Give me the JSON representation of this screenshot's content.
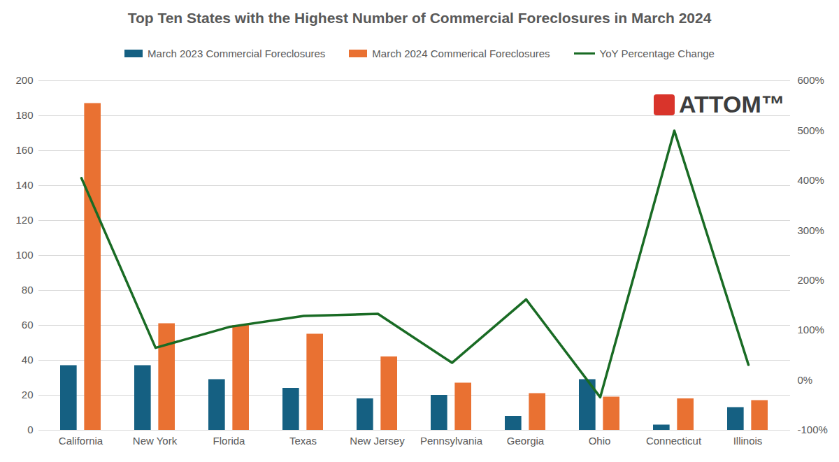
{
  "chart_data": {
    "type": "bar",
    "title": "Top Ten States with the Highest Number of Commercial Foreclosures in March 2024",
    "categories": [
      "California",
      "New York",
      "Florida",
      "Texas",
      "New Jersey",
      "Pennsylvania",
      "Georgia",
      "Ohio",
      "Connecticut",
      "Illinois"
    ],
    "series": [
      {
        "name": "March 2023 Commercial Foreclosures",
        "color": "#156082",
        "values": [
          37,
          37,
          29,
          24,
          18,
          20,
          8,
          29,
          3,
          13
        ]
      },
      {
        "name": "March 2024 Commerical Foreclosures",
        "color": "#e97132",
        "values": [
          187,
          61,
          60,
          55,
          42,
          27,
          21,
          19,
          18,
          17
        ]
      },
      {
        "name": "YoY Percentage Change",
        "type": "line",
        "axis": "y2",
        "color": "#196b24",
        "values": [
          405,
          65,
          107,
          129,
          133,
          35,
          162,
          -34,
          500,
          31
        ]
      }
    ],
    "ylim": [
      0,
      200
    ],
    "yticks": [
      0,
      20,
      40,
      60,
      80,
      100,
      120,
      140,
      160,
      180,
      200
    ],
    "y2lim": [
      -100,
      600
    ],
    "y2ticks": [
      {
        "value": -100,
        "label": "-100%"
      },
      {
        "value": 0,
        "label": "0%"
      },
      {
        "value": 100,
        "label": "100%"
      },
      {
        "value": 200,
        "label": "200%"
      },
      {
        "value": 300,
        "label": "300%"
      },
      {
        "value": 400,
        "label": "400%"
      },
      {
        "value": 500,
        "label": "500%"
      },
      {
        "value": 600,
        "label": "600%"
      }
    ],
    "grid": true,
    "legend": "top",
    "annotations": [
      "ATTOM™"
    ]
  }
}
